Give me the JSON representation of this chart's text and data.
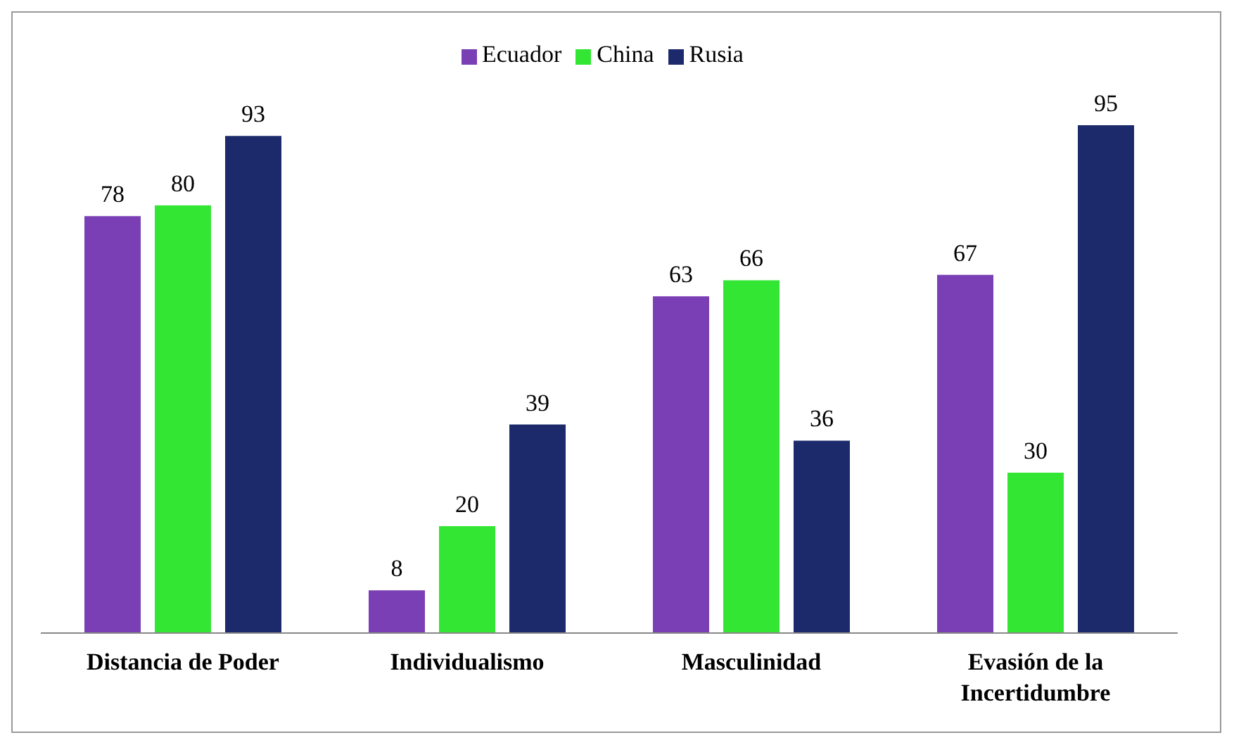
{
  "chart_data": {
    "type": "bar",
    "categories": [
      "Distancia de Poder",
      "Individualismo",
      "Masculinidad",
      "Evasión de la Incertidumbre"
    ],
    "series": [
      {
        "name": "Ecuador",
        "color": "#7b3fb5",
        "values": [
          78,
          8,
          63,
          67
        ]
      },
      {
        "name": "China",
        "color": "#33e633",
        "values": [
          80,
          20,
          66,
          30
        ]
      },
      {
        "name": "Rusia",
        "color": "#1c2a6b",
        "values": [
          93,
          39,
          36,
          95
        ]
      }
    ],
    "data_labels": true,
    "legend": "top",
    "grid": false
  }
}
